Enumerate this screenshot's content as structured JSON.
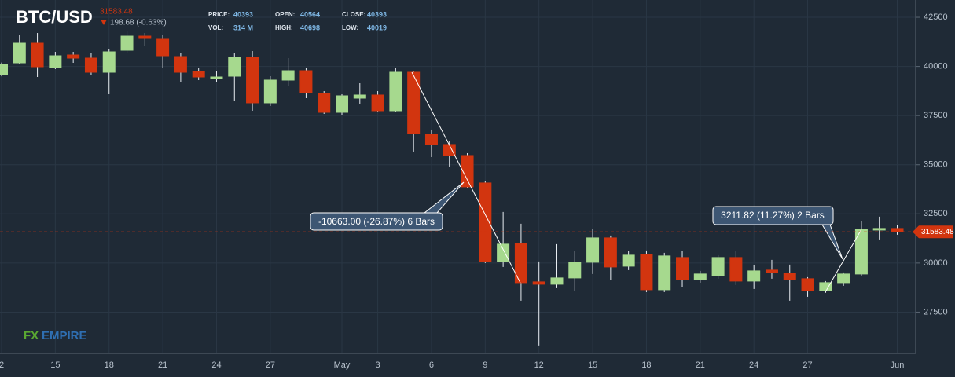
{
  "chart_data": {
    "type": "candlestick",
    "title": "BTC/USD",
    "last_price": 31583.48,
    "change": "198.68 (-0.63%)",
    "info": [
      {
        "label": "PRICE:",
        "value": 40393
      },
      {
        "label": "VOL:",
        "value": "314 M"
      },
      {
        "label": "OPEN:",
        "value": 40564
      },
      {
        "label": "HIGH:",
        "value": 40698
      },
      {
        "label": "CLOSE:",
        "value": 40393
      },
      {
        "label": "LOW:",
        "value": 40019
      }
    ],
    "categories": [
      "2",
      null,
      null,
      "15",
      null,
      null,
      "18",
      null,
      null,
      "21",
      null,
      null,
      "24",
      null,
      null,
      "27",
      null,
      null,
      null,
      "May",
      null,
      "3",
      null,
      null,
      "6",
      null,
      null,
      "9",
      null,
      null,
      "12",
      null,
      null,
      "15",
      null,
      null,
      "18",
      null,
      null,
      "21",
      null,
      null,
      "24",
      null,
      null,
      "27",
      null,
      null,
      null,
      null,
      "Jun"
    ],
    "open": [
      39584,
      40183,
      41182,
      39944,
      40583,
      40423,
      39704,
      40823,
      41541,
      41382,
      40503,
      39744,
      39384,
      39504,
      40463,
      38147,
      39305,
      39784,
      38626,
      37667,
      38386,
      38546,
      37747,
      39704,
      36549,
      36030,
      35470,
      34073,
      30079,
      30998,
      29040,
      28920,
      29240,
      30039,
      31277,
      29839,
      30439,
      28640,
      30279,
      29160,
      29360,
      30279,
      29080,
      29639,
      29480,
      29200,
      28600,
      29000,
      29440,
      31677,
      31757
    ],
    "high": [
      40200,
      41621,
      41701,
      40743,
      40743,
      40663,
      40902,
      41781,
      41701,
      41621,
      40663,
      39944,
      39784,
      40703,
      40783,
      39504,
      40423,
      39944,
      38746,
      38586,
      39145,
      38746,
      39904,
      39784,
      36789,
      36190,
      35590,
      34153,
      32596,
      31997,
      30079,
      30958,
      30598,
      31717,
      31397,
      30598,
      30638,
      30518,
      30598,
      29599,
      30399,
      30598,
      29879,
      30159,
      29919,
      29280,
      29080,
      29520,
      32117,
      32357,
      31917
    ],
    "low": [
      39500,
      40104,
      39464,
      39864,
      40183,
      39584,
      38586,
      40663,
      41062,
      39904,
      39225,
      39305,
      39225,
      38266,
      37747,
      37987,
      38985,
      38386,
      37588,
      37508,
      38107,
      37667,
      37667,
      35670,
      35390,
      34911,
      33793,
      29999,
      29799,
      28081,
      25805,
      28720,
      28560,
      29440,
      29120,
      29639,
      28520,
      28520,
      28760,
      28999,
      29200,
      28880,
      28680,
      29200,
      28081,
      28280,
      28480,
      28840,
      29360,
      31197,
      31437
    ],
    "close": [
      40104,
      41182,
      39984,
      40543,
      40423,
      39704,
      40743,
      41541,
      41422,
      40543,
      39704,
      39464,
      39464,
      40463,
      38147,
      39305,
      39784,
      38666,
      37667,
      38506,
      38546,
      37747,
      39704,
      36589,
      36030,
      35470,
      33873,
      30079,
      30958,
      29000,
      28920,
      29240,
      30039,
      31277,
      29799,
      30399,
      28640,
      30359,
      29160,
      29440,
      30279,
      29080,
      29599,
      29520,
      29160,
      28600,
      29000,
      29440,
      31717,
      31757,
      31583
    ],
    "up_color": "#a6d98e",
    "down_color": "#d2350f",
    "ylim": [
      25400,
      43380
    ],
    "yticks": [
      27500,
      30000,
      32500,
      35000,
      37500,
      40000,
      42500
    ],
    "grid": true,
    "annotations": [
      "-10663.00 (-26.87%) 6 Bars",
      "3211.82 (11.27%) 2 Bars"
    ],
    "watermark": [
      "FX",
      "EMPIRE"
    ]
  }
}
